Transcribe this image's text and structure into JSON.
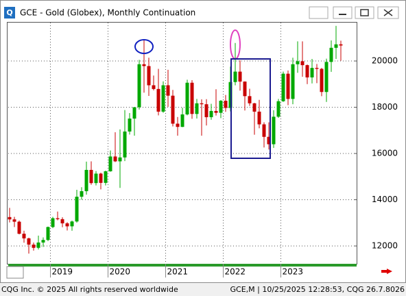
{
  "window": {
    "title": "GCE - Gold (Globex), Monthly Continuation"
  },
  "chart_data": {
    "type": "candlestick",
    "categories": [
      null,
      null,
      null,
      null,
      null,
      null,
      null,
      null,
      null,
      "2019",
      null,
      null,
      null,
      null,
      null,
      null,
      null,
      null,
      null,
      null,
      null,
      "2020",
      null,
      null,
      null,
      null,
      null,
      null,
      null,
      null,
      null,
      null,
      null,
      "2021",
      null,
      null,
      null,
      null,
      null,
      null,
      null,
      null,
      null,
      null,
      null,
      "2022",
      null,
      null,
      null,
      null,
      null,
      null,
      null,
      null,
      null,
      null,
      null,
      "2023",
      null,
      null,
      null,
      null,
      null,
      null,
      null,
      null,
      null,
      null,
      null,
      null
    ],
    "open": [
      13250,
      13150,
      13050,
      12530,
      12330,
      12060,
      11920,
      12150,
      12260,
      12820,
      13200,
      13160,
      12980,
      12850,
      13060,
      14130,
      14370,
      15290,
      14720,
      15130,
      14730,
      15230,
      15870,
      15660,
      15830,
      16950,
      17510,
      18000,
      19860,
      19780,
      18950,
      18790,
      17810,
      18950,
      18500,
      17290,
      17150,
      17690,
      19060,
      17710,
      18170,
      18130,
      17570,
      17840,
      17760,
      18280,
      17970,
      19090,
      19540,
      19110,
      18480,
      18170,
      17810,
      17260,
      16720,
      16400,
      17590,
      18260,
      19450,
      18360,
      19860,
      19990,
      19820,
      19290,
      19700,
      19660,
      18660,
      19960,
      20570,
      20720
    ],
    "high": [
      13650,
      13260,
      13100,
      12660,
      12360,
      12150,
      12450,
      12370,
      12840,
      13260,
      13490,
      13240,
      13030,
      13100,
      14430,
      14540,
      15650,
      15660,
      15240,
      15170,
      15260,
      16130,
      16920,
      17040,
      17880,
      17750,
      18000,
      20050,
      20890,
      20140,
      19370,
      19660,
      19120,
      19620,
      18750,
      17580,
      17980,
      19190,
      19170,
      18360,
      18340,
      18350,
      18150,
      18780,
      18310,
      18530,
      19760,
      20780,
      20030,
      19120,
      18800,
      18190,
      18320,
      17350,
      17350,
      17870,
      18360,
      19540,
      19590,
      20140,
      20850,
      20850,
      19850,
      20090,
      19870,
      19700,
      20100,
      20890,
      21520,
      20880
    ],
    "low": [
      13020,
      12820,
      12500,
      12140,
      11670,
      11800,
      11850,
      11960,
      12210,
      12770,
      13110,
      12810,
      12670,
      12660,
      13010,
      14000,
      14220,
      14650,
      14620,
      14450,
      14620,
      15210,
      15630,
      14510,
      15670,
      16820,
      16770,
      17900,
      18630,
      18490,
      18730,
      17650,
      17760,
      18020,
      17170,
      16770,
      17140,
      17650,
      17500,
      17510,
      16770,
      17210,
      17460,
      17640,
      17530,
      17800,
      17820,
      18950,
      18720,
      17860,
      18060,
      16810,
      17090,
      16260,
      16170,
      16240,
      17540,
      18230,
      18090,
      18130,
      19490,
      19320,
      19000,
      19030,
      19040,
      18480,
      18230,
      19530,
      20090,
      20010
    ],
    "close": [
      13150,
      13050,
      12530,
      12330,
      12060,
      11920,
      12150,
      12260,
      12820,
      13200,
      13160,
      12980,
      12850,
      13060,
      14130,
      14370,
      15290,
      14720,
      15130,
      14730,
      15230,
      15870,
      15660,
      15830,
      16950,
      17510,
      18000,
      19860,
      19780,
      18950,
      18790,
      17810,
      18950,
      18500,
      17290,
      17150,
      17690,
      19060,
      17710,
      18170,
      18130,
      17570,
      17840,
      17760,
      18280,
      17970,
      19090,
      19540,
      19110,
      18480,
      18170,
      17810,
      17260,
      16720,
      16400,
      17590,
      18260,
      19450,
      18360,
      19860,
      19990,
      19820,
      19290,
      19700,
      19660,
      18660,
      19960,
      20570,
      20720,
      20670
    ],
    "up_color": "#00a800",
    "down_color": "#c80000",
    "ylim": [
      11230,
      21660
    ],
    "yticks": [
      12000,
      14000,
      16000,
      18000,
      20000
    ],
    "grid": true
  },
  "footer": {
    "left": "CQG Inc. © 2025 All rights reserved worldwide",
    "right": "GCE,M | 10/25/2025 12:28:53, CQG 26.7.8026"
  }
}
